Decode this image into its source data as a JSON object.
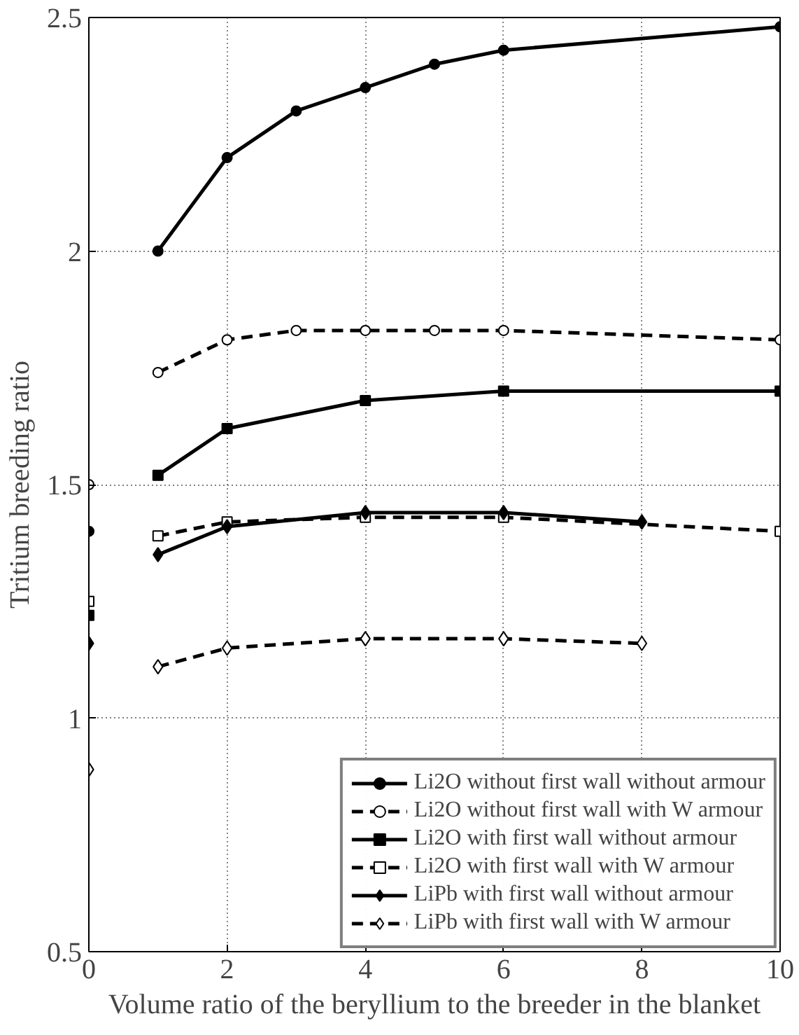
{
  "chart_data": {
    "type": "line",
    "xlabel": "Volume ratio of the beryllium to the breeder in the blanket",
    "ylabel": "Tritium breeding ratio",
    "xlim": [
      0,
      10
    ],
    "ylim": [
      0.5,
      2.5
    ],
    "xticks": [
      0,
      2,
      4,
      6,
      8,
      10
    ],
    "yticks": [
      0.5,
      1,
      1.5,
      2,
      2.5
    ],
    "grid": true,
    "legend": "bottom right",
    "series": [
      {
        "name": "Li2O without first wall without armour",
        "color": "#000000",
        "marker": "circle",
        "line_style": "solid",
        "x": [
          1,
          2,
          3,
          4,
          5,
          6,
          10
        ],
        "values": [
          2.0,
          2.2,
          2.3,
          2.35,
          2.4,
          2.43,
          2.48
        ]
      },
      {
        "name": "Li2O without first wall with W armour",
        "color": "#000000",
        "marker": "circle",
        "line_style": "dashed",
        "x": [
          1,
          2,
          3,
          4,
          5,
          6,
          10
        ],
        "values": [
          1.74,
          1.81,
          1.83,
          1.83,
          1.83,
          1.83,
          1.81
        ]
      },
      {
        "name": "Li2O with first wall without armour",
        "color": "#000000",
        "marker": "square",
        "line_style": "solid",
        "x": [
          1,
          2,
          4,
          6,
          10
        ],
        "values": [
          1.52,
          1.62,
          1.68,
          1.7,
          1.7
        ]
      },
      {
        "name": "Li2O with first wall with W armour",
        "color": "#000000",
        "marker": "square",
        "line_style": "dashed",
        "x": [
          1,
          2,
          4,
          6,
          10
        ],
        "values": [
          1.39,
          1.42,
          1.43,
          1.43,
          1.4
        ]
      },
      {
        "name": "LiPb with first wall without armour",
        "color": "#000000",
        "marker": "diamond",
        "line_style": "solid",
        "x": [
          1,
          2,
          4,
          6,
          8
        ],
        "values": [
          1.35,
          1.41,
          1.44,
          1.44,
          1.42
        ]
      },
      {
        "name": "LiPb with first wall with W armour",
        "color": "#000000",
        "marker": "diamond",
        "line_style": "dashed",
        "x": [
          1,
          2,
          4,
          6,
          8
        ],
        "values": [
          1.11,
          1.15,
          1.17,
          1.17,
          1.16
        ]
      },
      {
        "type": "scatter",
        "color": "#000000",
        "marker": "circle",
        "line_style": "solid",
        "x": [
          0
        ],
        "values": [
          1.4
        ]
      },
      {
        "type": "scatter",
        "color": "#000000",
        "marker": "circle",
        "line_style": "dashed",
        "x": [
          0
        ],
        "values": [
          1.5
        ]
      },
      {
        "type": "scatter",
        "color": "#000000",
        "marker": "square",
        "line_style": "solid",
        "x": [
          0
        ],
        "values": [
          1.22
        ]
      },
      {
        "type": "scatter",
        "color": "#000000",
        "marker": "square",
        "line_style": "dashed",
        "x": [
          0
        ],
        "values": [
          1.25
        ]
      },
      {
        "type": "scatter",
        "color": "#000000",
        "marker": "diamond",
        "line_style": "solid",
        "x": [
          0
        ],
        "values": [
          1.16
        ]
      },
      {
        "type": "scatter",
        "color": "#000000",
        "marker": "diamond",
        "line_style": "dashed",
        "x": [
          0
        ],
        "values": [
          0.89
        ]
      }
    ]
  }
}
